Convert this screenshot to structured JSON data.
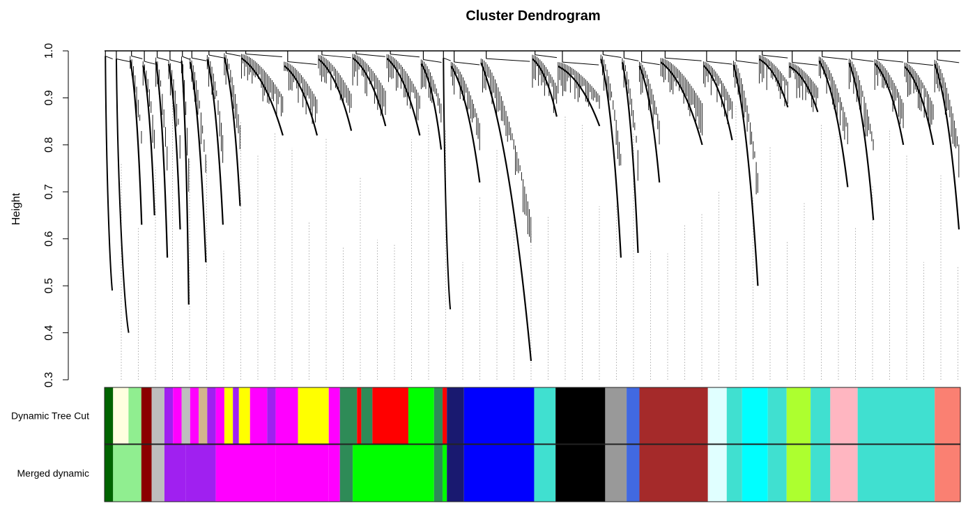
{
  "chart_data": {
    "type": "dendrogram",
    "title": "Cluster Dendrogram",
    "xlabel": "",
    "ylabel": "Height",
    "ylim": [
      0.3,
      1.0
    ],
    "yticks": [
      "0.3",
      "0.4",
      "0.5",
      "0.6",
      "0.7",
      "0.8",
      "0.9",
      "1.0"
    ],
    "grid": false,
    "top_merge_height": 1.0,
    "branches": [
      {
        "x0": 0.0,
        "x1": 0.01,
        "min": 0.49,
        "dense": false
      },
      {
        "x0": 0.012,
        "x1": 0.03,
        "min": 0.4,
        "dense": false
      },
      {
        "x0": 0.03,
        "x1": 0.045,
        "min": 0.63,
        "dense": true
      },
      {
        "x0": 0.045,
        "x1": 0.06,
        "min": 0.65,
        "dense": true
      },
      {
        "x0": 0.06,
        "x1": 0.075,
        "min": 0.56,
        "dense": true
      },
      {
        "x0": 0.075,
        "x1": 0.09,
        "min": 0.62,
        "dense": true
      },
      {
        "x0": 0.09,
        "x1": 0.1,
        "min": 0.46,
        "dense": true
      },
      {
        "x0": 0.1,
        "x1": 0.12,
        "min": 0.55,
        "dense": true
      },
      {
        "x0": 0.12,
        "x1": 0.14,
        "min": 0.63,
        "dense": true
      },
      {
        "x0": 0.14,
        "x1": 0.16,
        "min": 0.67,
        "dense": true
      },
      {
        "x0": 0.16,
        "x1": 0.21,
        "min": 0.82,
        "dense": true
      },
      {
        "x0": 0.21,
        "x1": 0.25,
        "min": 0.82,
        "dense": true
      },
      {
        "x0": 0.25,
        "x1": 0.29,
        "min": 0.83,
        "dense": true
      },
      {
        "x0": 0.29,
        "x1": 0.33,
        "min": 0.84,
        "dense": true
      },
      {
        "x0": 0.33,
        "x1": 0.37,
        "min": 0.82,
        "dense": true
      },
      {
        "x0": 0.37,
        "x1": 0.395,
        "min": 0.79,
        "dense": true
      },
      {
        "x0": 0.395,
        "x1": 0.405,
        "min": 0.45,
        "dense": false
      },
      {
        "x0": 0.405,
        "x1": 0.44,
        "min": 0.72,
        "dense": true
      },
      {
        "x0": 0.44,
        "x1": 0.5,
        "min": 0.34,
        "dense": true
      },
      {
        "x0": 0.5,
        "x1": 0.53,
        "min": 0.86,
        "dense": true
      },
      {
        "x0": 0.53,
        "x1": 0.58,
        "min": 0.84,
        "dense": true
      },
      {
        "x0": 0.58,
        "x1": 0.605,
        "min": 0.56,
        "dense": true
      },
      {
        "x0": 0.605,
        "x1": 0.625,
        "min": 0.57,
        "dense": true
      },
      {
        "x0": 0.625,
        "x1": 0.65,
        "min": 0.72,
        "dense": true
      },
      {
        "x0": 0.65,
        "x1": 0.7,
        "min": 0.8,
        "dense": true
      },
      {
        "x0": 0.7,
        "x1": 0.735,
        "min": 0.81,
        "dense": true
      },
      {
        "x0": 0.735,
        "x1": 0.765,
        "min": 0.5,
        "dense": true
      },
      {
        "x0": 0.765,
        "x1": 0.8,
        "min": 0.88,
        "dense": true
      },
      {
        "x0": 0.8,
        "x1": 0.835,
        "min": 0.87,
        "dense": true
      },
      {
        "x0": 0.835,
        "x1": 0.87,
        "min": 0.71,
        "dense": true
      },
      {
        "x0": 0.87,
        "x1": 0.9,
        "min": 0.64,
        "dense": true
      },
      {
        "x0": 0.9,
        "x1": 0.935,
        "min": 0.8,
        "dense": true
      },
      {
        "x0": 0.935,
        "x1": 0.97,
        "min": 0.8,
        "dense": true
      },
      {
        "x0": 0.97,
        "x1": 1.0,
        "min": 0.62,
        "dense": true
      }
    ],
    "color_rows": [
      {
        "label": "Dynamic Tree Cut",
        "segments": [
          [
            0.0,
            0.01,
            "#006400"
          ],
          [
            0.01,
            0.028,
            "#ffffe0"
          ],
          [
            0.028,
            0.043,
            "#90ee90"
          ],
          [
            0.043,
            0.055,
            "#8b0000"
          ],
          [
            0.055,
            0.07,
            "#bebebe"
          ],
          [
            0.07,
            0.08,
            "#a020f0"
          ],
          [
            0.08,
            0.09,
            "#ff00ff"
          ],
          [
            0.09,
            0.1,
            "#bebebe"
          ],
          [
            0.1,
            0.11,
            "#ff00ff"
          ],
          [
            0.11,
            0.12,
            "#d2b48c"
          ],
          [
            0.12,
            0.13,
            "#a020f0"
          ],
          [
            0.13,
            0.14,
            "#ff00ff"
          ],
          [
            0.14,
            0.15,
            "#ffff00"
          ],
          [
            0.15,
            0.157,
            "#a020f0"
          ],
          [
            0.157,
            0.17,
            "#ffff00"
          ],
          [
            0.17,
            0.19,
            "#ff00ff"
          ],
          [
            0.19,
            0.2,
            "#a020f0"
          ],
          [
            0.2,
            0.226,
            "#ff00ff"
          ],
          [
            0.226,
            0.262,
            "#ffff00"
          ],
          [
            0.262,
            0.275,
            "#ff00ff"
          ],
          [
            0.275,
            0.295,
            "#2e8b57"
          ],
          [
            0.295,
            0.3,
            "#ff0000"
          ],
          [
            0.3,
            0.313,
            "#2e8b57"
          ],
          [
            0.313,
            0.355,
            "#ff0000"
          ],
          [
            0.355,
            0.385,
            "#00ff00"
          ],
          [
            0.385,
            0.395,
            "#2e8b57"
          ],
          [
            0.395,
            0.4,
            "#ff0000"
          ],
          [
            0.4,
            0.42,
            "#191970"
          ],
          [
            0.42,
            0.502,
            "#0000ff"
          ],
          [
            0.502,
            0.527,
            "#40e0d0"
          ],
          [
            0.527,
            0.585,
            "#000000"
          ],
          [
            0.585,
            0.61,
            "#999999"
          ],
          [
            0.61,
            0.625,
            "#4169e1"
          ],
          [
            0.625,
            0.705,
            "#a52a2a"
          ],
          [
            0.705,
            0.727,
            "#e0ffff"
          ],
          [
            0.727,
            0.745,
            "#40e0d0"
          ],
          [
            0.745,
            0.775,
            "#00ffff"
          ],
          [
            0.775,
            0.797,
            "#40e0d0"
          ],
          [
            0.797,
            0.825,
            "#adff2f"
          ],
          [
            0.825,
            0.848,
            "#40e0d0"
          ],
          [
            0.848,
            0.88,
            "#ffb6c1"
          ],
          [
            0.88,
            0.97,
            "#40e0d0"
          ],
          [
            0.97,
            1.0,
            "#fa8072"
          ]
        ]
      },
      {
        "label": "Merged dynamic",
        "segments": [
          [
            0.0,
            0.01,
            "#006400"
          ],
          [
            0.01,
            0.043,
            "#90ee90"
          ],
          [
            0.043,
            0.055,
            "#8b0000"
          ],
          [
            0.055,
            0.07,
            "#bebebe"
          ],
          [
            0.07,
            0.095,
            "#a020f0"
          ],
          [
            0.095,
            0.13,
            "#a020f0"
          ],
          [
            0.13,
            0.2,
            "#ff00ff"
          ],
          [
            0.2,
            0.262,
            "#ff00ff"
          ],
          [
            0.262,
            0.275,
            "#ff00ff"
          ],
          [
            0.275,
            0.29,
            "#2e8b57"
          ],
          [
            0.29,
            0.385,
            "#00ff00"
          ],
          [
            0.385,
            0.395,
            "#2e8b57"
          ],
          [
            0.395,
            0.4,
            "#00ff00"
          ],
          [
            0.4,
            0.42,
            "#191970"
          ],
          [
            0.42,
            0.502,
            "#0000ff"
          ],
          [
            0.502,
            0.527,
            "#40e0d0"
          ],
          [
            0.527,
            0.585,
            "#000000"
          ],
          [
            0.585,
            0.61,
            "#999999"
          ],
          [
            0.61,
            0.625,
            "#4169e1"
          ],
          [
            0.625,
            0.705,
            "#a52a2a"
          ],
          [
            0.705,
            0.727,
            "#e0ffff"
          ],
          [
            0.727,
            0.745,
            "#40e0d0"
          ],
          [
            0.745,
            0.775,
            "#00ffff"
          ],
          [
            0.775,
            0.797,
            "#40e0d0"
          ],
          [
            0.797,
            0.825,
            "#adff2f"
          ],
          [
            0.825,
            0.848,
            "#40e0d0"
          ],
          [
            0.848,
            0.88,
            "#ffb6c1"
          ],
          [
            0.88,
            0.97,
            "#40e0d0"
          ],
          [
            0.97,
            1.0,
            "#fa8072"
          ]
        ]
      }
    ]
  }
}
